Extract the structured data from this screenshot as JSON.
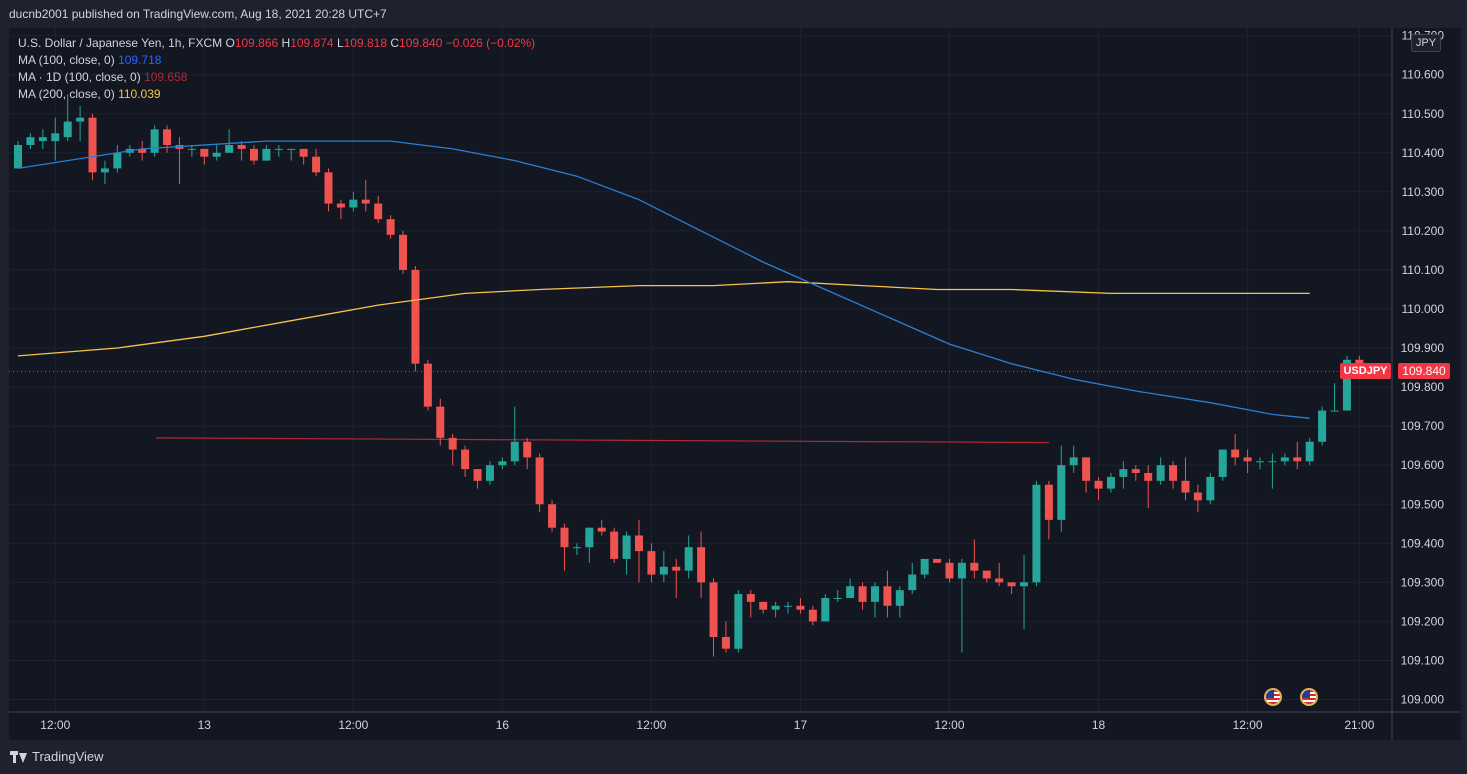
{
  "header": {
    "published": "ducnb2001 published on TradingView.com, Aug 18, 2021 20:28 UTC+7"
  },
  "legend": {
    "symbol": "U.S. Dollar / Japanese Yen, 1h, FXCM",
    "open_label": "O",
    "open": "109.866",
    "high_label": "H",
    "high": "109.874",
    "low_label": "L",
    "low": "109.818",
    "close_label": "C",
    "close": "109.840",
    "change": "−0.026 (−0.02%)",
    "ma100_label": "MA (100, close, 0)",
    "ma100_value": "109.718",
    "ma1d_label": "MA · 1D (100, close, 0)",
    "ma1d_value": "109.658",
    "ma200_label": "MA (200, close, 0)",
    "ma200_value": "110.039"
  },
  "axis": {
    "currency_badge": "JPY",
    "symbol_tag": "USDJPY",
    "last_price": "109.840",
    "x_tick_labels": [
      "12:00",
      "13",
      "12:00",
      "16",
      "12:00",
      "17",
      "12:00",
      "18",
      "12:00",
      "21:00"
    ],
    "y_tick_labels": [
      "110.700",
      "110.600",
      "110.500",
      "110.400",
      "110.300",
      "110.200",
      "110.100",
      "110.000",
      "109.900",
      "109.800",
      "109.700",
      "109.600",
      "109.500",
      "109.400",
      "109.300",
      "109.200",
      "109.100",
      "109.000"
    ]
  },
  "footer": {
    "brand": "TradingView"
  },
  "colors": {
    "background": "#131722",
    "up": "#26a69a",
    "down": "#ef5350",
    "ma100": "#2962ff",
    "ma200": "#f9c34a",
    "ma1d": "#b22833"
  },
  "icons": [
    "us-flag-event-icon",
    "us-flag-event-icon",
    "tradingview-logo-icon"
  ],
  "chart_data": {
    "type": "candlestick",
    "timeframe": "1h",
    "ylim": [
      109.0,
      110.72
    ],
    "x_ticks": [
      {
        "label": "12:00",
        "index": 3
      },
      {
        "label": "13",
        "index": 15
      },
      {
        "label": "12:00",
        "index": 27
      },
      {
        "label": "16",
        "index": 39
      },
      {
        "label": "12:00",
        "index": 51
      },
      {
        "label": "17",
        "index": 63
      },
      {
        "label": "12:00",
        "index": 75
      },
      {
        "label": "18",
        "index": 87
      },
      {
        "label": "12:00",
        "index": 99
      },
      {
        "label": "21:00",
        "index": 108
      }
    ],
    "y_ticks": [
      110.7,
      110.6,
      110.5,
      110.4,
      110.3,
      110.2,
      110.1,
      110.0,
      109.9,
      109.8,
      109.7,
      109.6,
      109.5,
      109.4,
      109.3,
      109.2,
      109.1,
      109.0
    ],
    "candles": [
      [
        110.36,
        110.42,
        110.36,
        110.43
      ],
      [
        110.42,
        110.44,
        110.41,
        110.45
      ],
      [
        110.43,
        110.44,
        110.41,
        110.46
      ],
      [
        110.43,
        110.45,
        110.38,
        110.49
      ],
      [
        110.44,
        110.48,
        110.43,
        110.55
      ],
      [
        110.48,
        110.49,
        110.43,
        110.52
      ],
      [
        110.49,
        110.35,
        110.33,
        110.5
      ],
      [
        110.35,
        110.36,
        110.32,
        110.38
      ],
      [
        110.36,
        110.4,
        110.35,
        110.42
      ],
      [
        110.4,
        110.41,
        110.39,
        110.42
      ],
      [
        110.41,
        110.4,
        110.38,
        110.43
      ],
      [
        110.4,
        110.46,
        110.39,
        110.47
      ],
      [
        110.46,
        110.42,
        110.4,
        110.47
      ],
      [
        110.42,
        110.41,
        110.32,
        110.44
      ],
      [
        110.41,
        110.41,
        110.39,
        110.42
      ],
      [
        110.41,
        110.39,
        110.37,
        110.41
      ],
      [
        110.39,
        110.4,
        110.38,
        110.42
      ],
      [
        110.4,
        110.42,
        110.4,
        110.46
      ],
      [
        110.42,
        110.41,
        110.38,
        110.43
      ],
      [
        110.41,
        110.38,
        110.37,
        110.42
      ],
      [
        110.38,
        110.41,
        110.38,
        110.42
      ],
      [
        110.41,
        110.41,
        110.39,
        110.42
      ],
      [
        110.41,
        110.41,
        110.38,
        110.41
      ],
      [
        110.41,
        110.39,
        110.37,
        110.41
      ],
      [
        110.39,
        110.35,
        110.34,
        110.41
      ],
      [
        110.35,
        110.27,
        110.25,
        110.36
      ],
      [
        110.27,
        110.26,
        110.23,
        110.28
      ],
      [
        110.26,
        110.28,
        110.25,
        110.3
      ],
      [
        110.28,
        110.27,
        110.25,
        110.33
      ],
      [
        110.27,
        110.23,
        110.22,
        110.29
      ],
      [
        110.23,
        110.19,
        110.18,
        110.24
      ],
      [
        110.19,
        110.1,
        110.09,
        110.2
      ],
      [
        110.1,
        109.86,
        109.84,
        110.11
      ],
      [
        109.86,
        109.75,
        109.74,
        109.87
      ],
      [
        109.75,
        109.67,
        109.65,
        109.77
      ],
      [
        109.67,
        109.64,
        109.6,
        109.68
      ],
      [
        109.64,
        109.59,
        109.57,
        109.65
      ],
      [
        109.59,
        109.56,
        109.54,
        109.59
      ],
      [
        109.56,
        109.6,
        109.55,
        109.61
      ],
      [
        109.6,
        109.61,
        109.59,
        109.62
      ],
      [
        109.61,
        109.66,
        109.6,
        109.75
      ],
      [
        109.66,
        109.62,
        109.59,
        109.67
      ],
      [
        109.62,
        109.5,
        109.48,
        109.63
      ],
      [
        109.5,
        109.44,
        109.43,
        109.51
      ],
      [
        109.44,
        109.39,
        109.33,
        109.45
      ],
      [
        109.39,
        109.39,
        109.37,
        109.4
      ],
      [
        109.39,
        109.44,
        109.35,
        109.44
      ],
      [
        109.44,
        109.43,
        109.42,
        109.46
      ],
      [
        109.43,
        109.36,
        109.35,
        109.44
      ],
      [
        109.36,
        109.42,
        109.32,
        109.43
      ],
      [
        109.42,
        109.38,
        109.3,
        109.46
      ],
      [
        109.38,
        109.32,
        109.3,
        109.4
      ],
      [
        109.32,
        109.34,
        109.3,
        109.38
      ],
      [
        109.34,
        109.33,
        109.26,
        109.36
      ],
      [
        109.33,
        109.39,
        109.31,
        109.42
      ],
      [
        109.39,
        109.3,
        109.26,
        109.43
      ],
      [
        109.3,
        109.16,
        109.11,
        109.31
      ],
      [
        109.16,
        109.13,
        109.12,
        109.2
      ],
      [
        109.13,
        109.27,
        109.12,
        109.28
      ],
      [
        109.27,
        109.25,
        109.21,
        109.28
      ],
      [
        109.25,
        109.23,
        109.22,
        109.25
      ],
      [
        109.23,
        109.24,
        109.21,
        109.25
      ],
      [
        109.24,
        109.24,
        109.22,
        109.25
      ],
      [
        109.24,
        109.23,
        109.22,
        109.26
      ],
      [
        109.23,
        109.2,
        109.19,
        109.24
      ],
      [
        109.2,
        109.26,
        109.2,
        109.27
      ],
      [
        109.26,
        109.26,
        109.25,
        109.28
      ],
      [
        109.26,
        109.29,
        109.26,
        109.31
      ],
      [
        109.29,
        109.25,
        109.23,
        109.3
      ],
      [
        109.25,
        109.29,
        109.21,
        109.3
      ],
      [
        109.29,
        109.24,
        109.21,
        109.33
      ],
      [
        109.24,
        109.28,
        109.21,
        109.29
      ],
      [
        109.28,
        109.32,
        109.27,
        109.35
      ],
      [
        109.32,
        109.36,
        109.31,
        109.36
      ],
      [
        109.36,
        109.35,
        109.35,
        109.36
      ],
      [
        109.35,
        109.31,
        109.3,
        109.36
      ],
      [
        109.31,
        109.35,
        109.12,
        109.36
      ],
      [
        109.35,
        109.33,
        109.31,
        109.41
      ],
      [
        109.33,
        109.31,
        109.3,
        109.33
      ],
      [
        109.31,
        109.3,
        109.29,
        109.35
      ],
      [
        109.3,
        109.29,
        109.27,
        109.3
      ],
      [
        109.29,
        109.3,
        109.18,
        109.37
      ],
      [
        109.3,
        109.55,
        109.29,
        109.56
      ],
      [
        109.55,
        109.46,
        109.41,
        109.56
      ],
      [
        109.46,
        109.6,
        109.43,
        109.65
      ],
      [
        109.6,
        109.62,
        109.58,
        109.65
      ],
      [
        109.62,
        109.56,
        109.53,
        109.62
      ],
      [
        109.56,
        109.54,
        109.51,
        109.57
      ],
      [
        109.54,
        109.57,
        109.53,
        109.58
      ],
      [
        109.57,
        109.59,
        109.54,
        109.61
      ],
      [
        109.59,
        109.58,
        109.56,
        109.6
      ],
      [
        109.58,
        109.56,
        109.49,
        109.6
      ],
      [
        109.56,
        109.6,
        109.55,
        109.62
      ],
      [
        109.6,
        109.56,
        109.54,
        109.61
      ],
      [
        109.56,
        109.53,
        109.51,
        109.62
      ],
      [
        109.53,
        109.51,
        109.48,
        109.55
      ],
      [
        109.51,
        109.57,
        109.5,
        109.58
      ],
      [
        109.57,
        109.64,
        109.56,
        109.64
      ],
      [
        109.64,
        109.62,
        109.6,
        109.68
      ],
      [
        109.62,
        109.61,
        109.58,
        109.64
      ],
      [
        109.61,
        109.61,
        109.59,
        109.62
      ],
      [
        109.61,
        109.61,
        109.54,
        109.63
      ],
      [
        109.61,
        109.62,
        109.6,
        109.63
      ],
      [
        109.62,
        109.61,
        109.59,
        109.66
      ],
      [
        109.61,
        109.66,
        109.6,
        109.67
      ],
      [
        109.66,
        109.74,
        109.65,
        109.75
      ],
      [
        109.74,
        109.74,
        109.74,
        109.81
      ],
      [
        109.74,
        109.87,
        109.74,
        109.88
      ],
      [
        109.87,
        109.84,
        109.82,
        109.88
      ]
    ],
    "series": [
      {
        "name": "MA (100, close, 0)",
        "color": "#2962ff",
        "points": [
          [
            0,
            110.36
          ],
          [
            10,
            110.41
          ],
          [
            20,
            110.43
          ],
          [
            30,
            110.43
          ],
          [
            35,
            110.41
          ],
          [
            40,
            110.38
          ],
          [
            45,
            110.34
          ],
          [
            50,
            110.28
          ],
          [
            55,
            110.2
          ],
          [
            60,
            110.12
          ],
          [
            65,
            110.05
          ],
          [
            70,
            109.98
          ],
          [
            75,
            109.91
          ],
          [
            80,
            109.86
          ],
          [
            85,
            109.82
          ],
          [
            90,
            109.79
          ],
          [
            96,
            109.76
          ],
          [
            101,
            109.73
          ],
          [
            104,
            109.72
          ]
        ]
      },
      {
        "name": "MA (200, close, 0)",
        "color": "#f9c34a",
        "points": [
          [
            0,
            109.88
          ],
          [
            8,
            109.9
          ],
          [
            15,
            109.93
          ],
          [
            22,
            109.97
          ],
          [
            29,
            110.01
          ],
          [
            36,
            110.04
          ],
          [
            42,
            110.05
          ],
          [
            50,
            110.06
          ],
          [
            56,
            110.06
          ],
          [
            62,
            110.07
          ],
          [
            68,
            110.06
          ],
          [
            74,
            110.05
          ],
          [
            80,
            110.05
          ],
          [
            88,
            110.04
          ],
          [
            96,
            110.04
          ],
          [
            104,
            110.04
          ]
        ]
      },
      {
        "name": "MA · 1D (100, close, 0)",
        "color": "#b22833",
        "points": [
          [
            12,
            109.67
          ],
          [
            87,
            109.658
          ]
        ]
      }
    ],
    "last_price": 109.84
  }
}
